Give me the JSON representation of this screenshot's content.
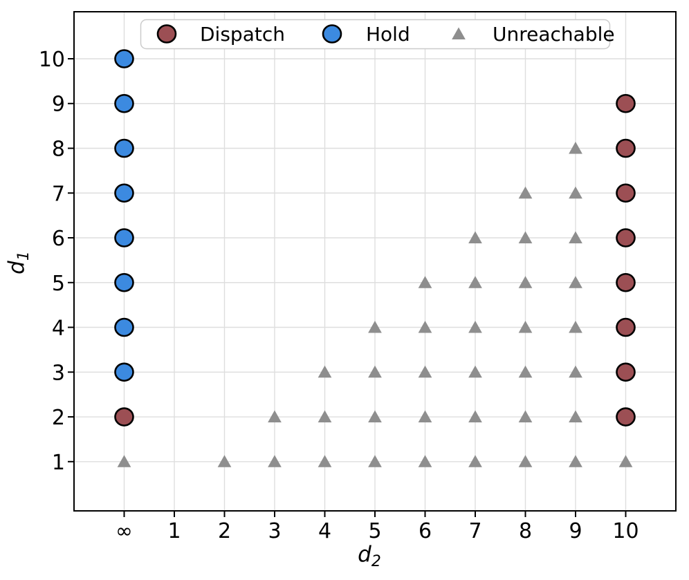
{
  "figure": {
    "background": "#ffffff"
  },
  "chart_data": {
    "type": "scatter",
    "title": "",
    "xlabel_base": "d",
    "xlabel_sub": "2",
    "ylabel_base": "d",
    "ylabel_sub": "1",
    "x_tick_labels": [
      "∞",
      "1",
      "2",
      "3",
      "4",
      "5",
      "6",
      "7",
      "8",
      "9",
      "10"
    ],
    "y_tick_labels": [
      "1",
      "2",
      "3",
      "4",
      "5",
      "6",
      "7",
      "8",
      "9",
      "10"
    ],
    "xlim": [
      -1,
      11
    ],
    "ylim": [
      -0.1,
      11.05
    ],
    "grid": true,
    "grid_color": "#dedede",
    "legend": {
      "position": "upper center",
      "border_color": "#cbcbcb",
      "background": "#ffffff"
    },
    "series": [
      {
        "name": "Dispatch",
        "marker": "circle",
        "fill": "#9c4f54",
        "edge": "#000000",
        "points": [
          [
            "∞",
            2
          ],
          [
            10,
            2
          ],
          [
            10,
            3
          ],
          [
            10,
            4
          ],
          [
            10,
            5
          ],
          [
            10,
            6
          ],
          [
            10,
            7
          ],
          [
            10,
            8
          ],
          [
            10,
            9
          ]
        ]
      },
      {
        "name": "Hold",
        "marker": "circle",
        "fill": "#3c8ae0",
        "edge": "#000000",
        "points": [
          [
            "∞",
            3
          ],
          [
            "∞",
            4
          ],
          [
            "∞",
            5
          ],
          [
            "∞",
            6
          ],
          [
            "∞",
            7
          ],
          [
            "∞",
            8
          ],
          [
            "∞",
            9
          ],
          [
            "∞",
            10
          ]
        ]
      },
      {
        "name": "Unreachable",
        "marker": "triangle",
        "fill": "#8e8e8e",
        "edge": "#8e8e8e",
        "points": [
          [
            "∞",
            1
          ],
          [
            2,
            1
          ],
          [
            3,
            1
          ],
          [
            4,
            1
          ],
          [
            5,
            1
          ],
          [
            6,
            1
          ],
          [
            7,
            1
          ],
          [
            8,
            1
          ],
          [
            9,
            1
          ],
          [
            10,
            1
          ],
          [
            3,
            2
          ],
          [
            4,
            2
          ],
          [
            5,
            2
          ],
          [
            6,
            2
          ],
          [
            7,
            2
          ],
          [
            8,
            2
          ],
          [
            9,
            2
          ],
          [
            4,
            3
          ],
          [
            5,
            3
          ],
          [
            6,
            3
          ],
          [
            7,
            3
          ],
          [
            8,
            3
          ],
          [
            9,
            3
          ],
          [
            5,
            4
          ],
          [
            6,
            4
          ],
          [
            7,
            4
          ],
          [
            8,
            4
          ],
          [
            9,
            4
          ],
          [
            6,
            5
          ],
          [
            7,
            5
          ],
          [
            8,
            5
          ],
          [
            9,
            5
          ],
          [
            7,
            6
          ],
          [
            8,
            6
          ],
          [
            9,
            6
          ],
          [
            8,
            7
          ],
          [
            9,
            7
          ],
          [
            9,
            8
          ]
        ]
      }
    ]
  }
}
